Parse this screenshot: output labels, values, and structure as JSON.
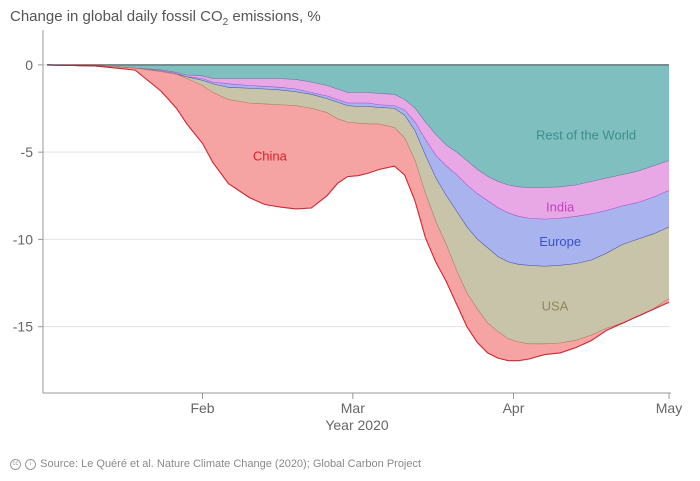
{
  "chart_data": {
    "type": "area",
    "title_parts": {
      "pre": "Change in global daily fossil CO",
      "sub": "2",
      "post": " emissions, %"
    },
    "xlabel": "Year 2020",
    "ylabel": "",
    "ylim": [
      -18.8,
      2
    ],
    "xlim": [
      1,
      121
    ],
    "y_ticks": [
      0,
      -5,
      -10,
      -15
    ],
    "x_ticks": [
      {
        "label": "Feb",
        "day": 31
      },
      {
        "label": "Mar",
        "day": 60
      },
      {
        "label": "Apr",
        "day": 91
      },
      {
        "label": "May",
        "day": 121
      }
    ],
    "x_unit": "day of year 2020",
    "grid": "horizontal",
    "legend": "inline labels",
    "x": [
      1,
      10,
      18,
      23,
      26,
      28,
      31,
      33,
      36,
      40,
      43,
      46,
      49,
      52,
      55,
      57,
      59,
      61,
      63,
      65,
      68,
      70,
      72,
      74,
      76,
      78,
      80,
      82,
      84,
      86,
      88,
      90,
      92,
      94,
      97,
      100,
      103,
      106,
      109,
      112,
      115,
      118,
      121
    ],
    "series": [
      {
        "name": "Rest of the World",
        "color": "#7fbfbf",
        "line": "#3a8f8f",
        "bottom": [
          0,
          -0.05,
          -0.2,
          -0.3,
          -0.45,
          -0.6,
          -0.65,
          -0.8,
          -0.8,
          -0.8,
          -0.8,
          -0.8,
          -0.85,
          -1.0,
          -1.2,
          -1.4,
          -1.6,
          -1.6,
          -1.6,
          -1.65,
          -1.7,
          -2.0,
          -2.5,
          -3.3,
          -4.0,
          -4.6,
          -5.0,
          -5.5,
          -6.0,
          -6.4,
          -6.7,
          -6.9,
          -7.0,
          -7.05,
          -7.05,
          -7.0,
          -6.9,
          -6.7,
          -6.5,
          -6.3,
          -6.1,
          -5.8,
          -5.5
        ]
      },
      {
        "name": "India",
        "color": "#e8a8e6",
        "line": "#c43fc4",
        "bottom": [
          0,
          -0.05,
          -0.2,
          -0.35,
          -0.5,
          -0.7,
          -0.8,
          -1.0,
          -1.1,
          -1.2,
          -1.25,
          -1.3,
          -1.4,
          -1.6,
          -1.8,
          -2.0,
          -2.2,
          -2.2,
          -2.2,
          -2.3,
          -2.35,
          -2.6,
          -3.3,
          -4.3,
          -5.2,
          -5.8,
          -6.3,
          -6.9,
          -7.4,
          -7.8,
          -8.2,
          -8.5,
          -8.7,
          -8.8,
          -8.85,
          -8.8,
          -8.7,
          -8.55,
          -8.35,
          -8.1,
          -7.9,
          -7.6,
          -7.2
        ]
      },
      {
        "name": "Europe",
        "color": "#a9b3ee",
        "line": "#3a50d0",
        "bottom": [
          0,
          -0.05,
          -0.2,
          -0.4,
          -0.55,
          -0.7,
          -0.9,
          -1.1,
          -1.3,
          -1.35,
          -1.4,
          -1.45,
          -1.55,
          -1.7,
          -1.95,
          -2.15,
          -2.35,
          -2.4,
          -2.4,
          -2.45,
          -2.5,
          -2.9,
          -3.8,
          -5.2,
          -6.5,
          -7.5,
          -8.4,
          -9.3,
          -10.0,
          -10.5,
          -11.0,
          -11.3,
          -11.45,
          -11.5,
          -11.55,
          -11.5,
          -11.4,
          -11.2,
          -10.8,
          -10.3,
          -10.0,
          -9.7,
          -9.3
        ]
      },
      {
        "name": "USA",
        "color": "#c8c4a9",
        "line": "#8f875a",
        "bottom": [
          0,
          -0.05,
          -0.2,
          -0.4,
          -0.55,
          -0.8,
          -1.2,
          -1.6,
          -2.0,
          -2.2,
          -2.25,
          -2.3,
          -2.35,
          -2.5,
          -2.75,
          -3.1,
          -3.3,
          -3.35,
          -3.4,
          -3.4,
          -3.6,
          -4.2,
          -5.5,
          -7.4,
          -9.0,
          -10.3,
          -11.8,
          -13.1,
          -14.0,
          -14.8,
          -15.3,
          -15.7,
          -15.9,
          -16.0,
          -16.0,
          -15.95,
          -15.8,
          -15.5,
          -15.1,
          -14.8,
          -14.4,
          -14.0,
          -13.4
        ]
      },
      {
        "name": "China",
        "color": "#f5a3a3",
        "line": "#e0202a",
        "bottom": [
          0,
          -0.05,
          -0.3,
          -1.5,
          -2.5,
          -3.4,
          -4.5,
          -5.6,
          -6.8,
          -7.6,
          -8.0,
          -8.15,
          -8.25,
          -8.2,
          -7.5,
          -6.8,
          -6.4,
          -6.35,
          -6.2,
          -6.0,
          -5.8,
          -6.3,
          -7.8,
          -9.9,
          -11.3,
          -12.4,
          -13.7,
          -15.0,
          -15.9,
          -16.5,
          -16.8,
          -16.95,
          -16.95,
          -16.85,
          -16.6,
          -16.5,
          -16.2,
          -15.8,
          -15.2,
          -14.8,
          -14.4,
          -14.0,
          -13.6
        ]
      }
    ],
    "annotations": [
      {
        "text": "Rest of the World",
        "x": 105,
        "y": -4.0,
        "color": "#3a8f8f"
      },
      {
        "text": "India",
        "x": 100,
        "y": -8.1,
        "color": "#c43fc4"
      },
      {
        "text": "Europe",
        "x": 100,
        "y": -10.1,
        "color": "#3a50d0"
      },
      {
        "text": "USA",
        "x": 99,
        "y": -13.8,
        "color": "#8f875a"
      },
      {
        "text": "China",
        "x": 44,
        "y": -5.2,
        "color": "#e0202a"
      }
    ]
  },
  "footer": {
    "icon": "creative-commons-icon",
    "text": "Source: Le Quéré et al. Nature Climate Change (2020); Global Carbon Project"
  }
}
